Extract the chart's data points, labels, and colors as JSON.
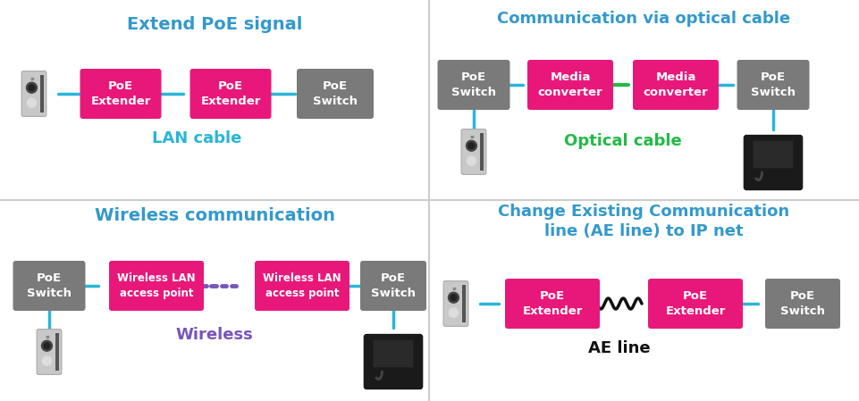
{
  "bg_color": "#ffffff",
  "divider_color": "#cccccc",
  "pink": "#e8187a",
  "gray": "#7a7a7a",
  "cyan": "#29b6d8",
  "green": "#22bb44",
  "purple": "#7755bb",
  "title_color": "#3399cc",
  "white": "#ffffff",
  "title1": "Extend PoE signal",
  "title2": "Communication via optical cable",
  "title3": "Wireless communication",
  "title4": "Change Existing Communication\nline (AE line) to IP net",
  "lan_label": "LAN cable",
  "opt_label": "Optical cable",
  "wireless_label": "Wireless",
  "ae_label": "AE line"
}
